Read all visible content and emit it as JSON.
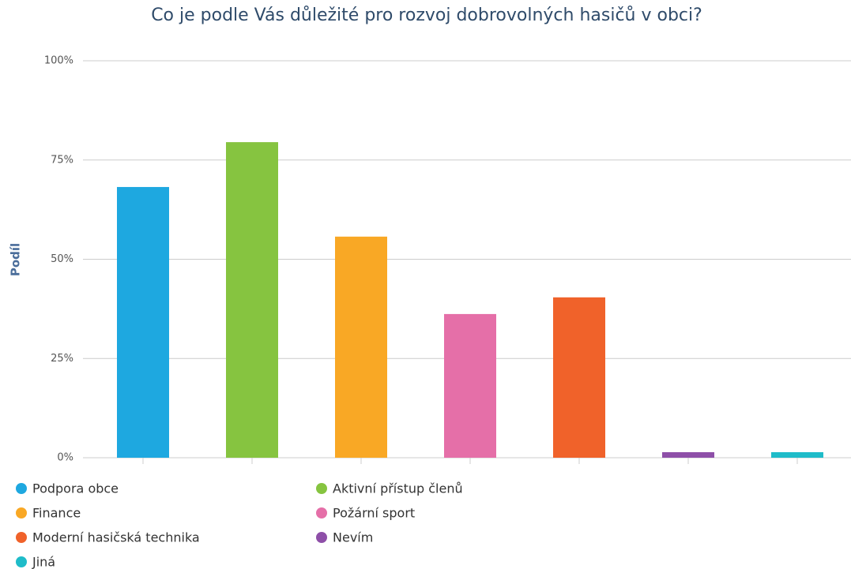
{
  "chart_data": {
    "type": "bar",
    "title": "Co je podle Vás důležité pro rozvoj dobrovolných hasičů v obci?",
    "y_label": "Podíl",
    "categories": [
      "Podpora obce",
      "Aktivní přístup členů",
      "Finance",
      "Požární sport",
      "Moderní hasičská technika",
      "Nevím",
      "Jiná"
    ],
    "values": [
      68.2,
      79.5,
      55.7,
      36.2,
      40.4,
      1.4,
      1.4
    ],
    "colors": [
      "#1ea8e0",
      "#86c440",
      "#f9a825",
      "#e56fa8",
      "#f0622a",
      "#8e4fa8",
      "#1fbcc9"
    ],
    "ylim": [
      0,
      100
    ],
    "yticks": [
      {
        "value": 0,
        "label": "0%"
      },
      {
        "value": 25,
        "label": "25%"
      },
      {
        "value": 50,
        "label": "50%"
      },
      {
        "value": 75,
        "label": "75%"
      },
      {
        "value": 100,
        "label": "100%"
      }
    ],
    "grid": true
  }
}
